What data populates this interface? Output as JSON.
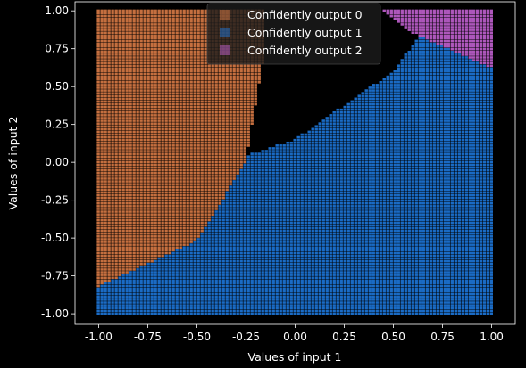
{
  "chart_data": {
    "type": "scatter",
    "xlabel": "Values of input 1",
    "ylabel": "Values of input 2",
    "xlim": [
      -1.12,
      1.12
    ],
    "ylim": [
      -1.07,
      1.06
    ],
    "x_ticks": [
      "-1.00",
      "-0.75",
      "-0.50",
      "-0.25",
      "0.00",
      "0.25",
      "0.50",
      "0.75",
      "1.00"
    ],
    "y_ticks": [
      "-1.00",
      "-0.75",
      "-0.50",
      "-0.25",
      "0.00",
      "0.25",
      "0.50",
      "0.75",
      "1.00"
    ],
    "grid": false,
    "legend_position": "top-center",
    "grid_points_per_axis": 111,
    "point_range": [
      -1.0,
      1.0
    ],
    "background": "#000000",
    "series": [
      {
        "name": "Confidently output 0",
        "color": "#e8834a",
        "region": "upper-left",
        "boundary_points": [
          [
            -1.0,
            -0.82
          ],
          [
            -0.5,
            -0.52
          ],
          [
            -0.25,
            0.0
          ],
          [
            -0.15,
            0.75
          ],
          [
            -0.15,
            1.0
          ]
        ]
      },
      {
        "name": "Confidently output 1",
        "color": "#1f7ee8",
        "region": "lower-right",
        "boundary_points": [
          [
            -0.35,
            0.0
          ],
          [
            0.0,
            0.15
          ],
          [
            0.5,
            0.6
          ],
          [
            0.7,
            0.95
          ],
          [
            1.0,
            0.62
          ]
        ]
      },
      {
        "name": "Confidently output 2",
        "color": "#cc66dd",
        "region": "upper-right",
        "boundary_points": [
          [
            0.45,
            1.0
          ],
          [
            0.6,
            0.85
          ],
          [
            1.0,
            0.62
          ]
        ]
      }
    ]
  }
}
